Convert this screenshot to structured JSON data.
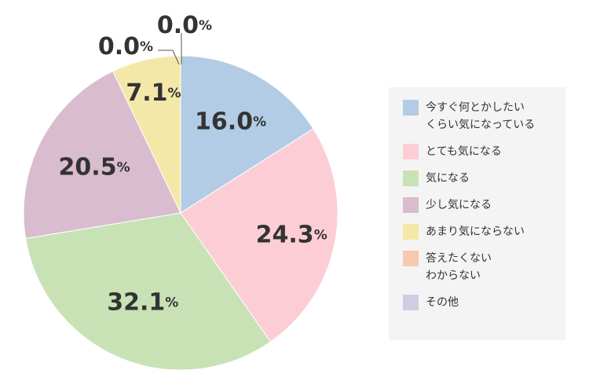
{
  "chart_data": {
    "type": "pie",
    "categories": [
      "今すぐ何とかしたいくらい気になっている",
      "とても気になる",
      "気になる",
      "少し気になる",
      "あまり気にならない",
      "答えたくないわからない",
      "その他"
    ],
    "values": [
      16.0,
      24.3,
      32.1,
      20.5,
      7.1,
      0.0,
      0.0
    ],
    "value_labels": [
      "16.0",
      "24.3",
      "32.1",
      "20.5",
      "7.1",
      "0.0",
      "0.0"
    ],
    "unit": "%",
    "colors": [
      "#b1cce4",
      "#fdcdd6",
      "#c8e2b5",
      "#d9bcce",
      "#f4e8a8",
      "#f6c9b0",
      "#cfcde2"
    ],
    "legend_position": "right",
    "legend": [
      {
        "lines": [
          "今すぐ何とかしたい",
          "くらい気になっている"
        ],
        "color": "#b1cce4"
      },
      {
        "lines": [
          "とても気になる"
        ],
        "color": "#fdcdd6"
      },
      {
        "lines": [
          "気になる"
        ],
        "color": "#c8e2b5"
      },
      {
        "lines": [
          "少し気になる"
        ],
        "color": "#d9bcce"
      },
      {
        "lines": [
          "あまり気にならない"
        ],
        "color": "#f4e8a8"
      },
      {
        "lines": [
          "答えたくない",
          "わからない"
        ],
        "color": "#f6c9b0"
      },
      {
        "lines": [
          "その他"
        ],
        "color": "#cfcde2"
      }
    ],
    "label_line_color": "#555555"
  }
}
